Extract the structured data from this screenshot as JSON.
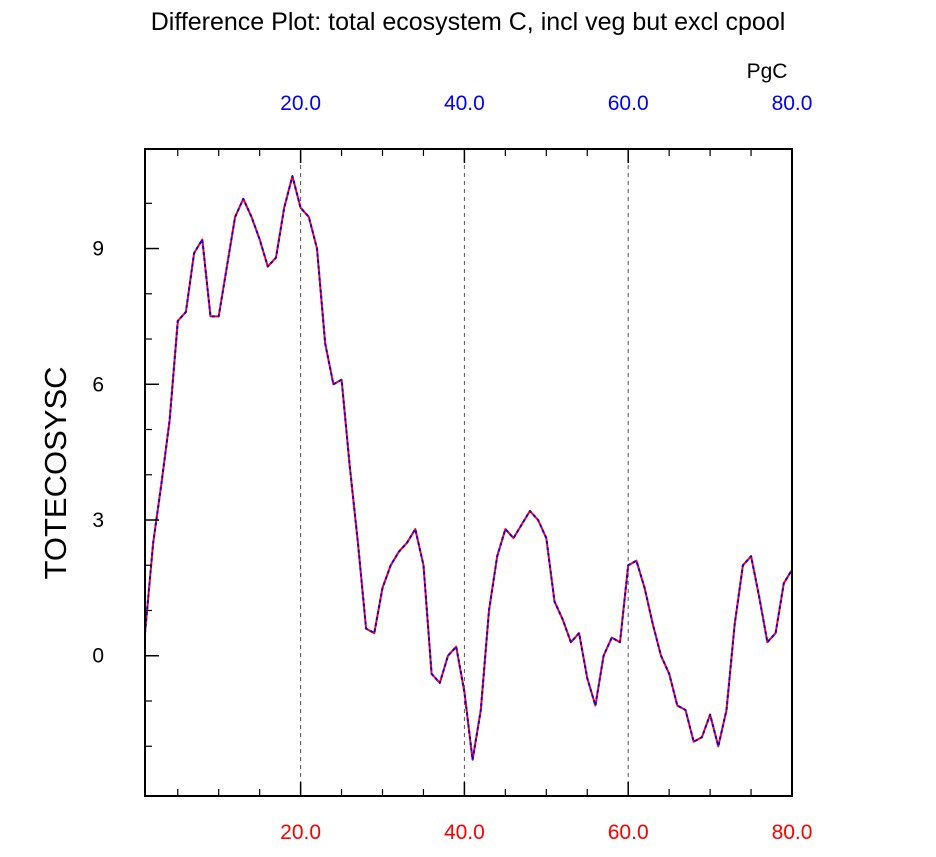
{
  "chart_data": {
    "type": "line",
    "title": "Difference Plot: total ecosystem C, incl veg but excl cpool",
    "units": "PgC",
    "ylabel": "TOTECOSYSC",
    "xlim": [
      1,
      80
    ],
    "ylim": [
      -3.1,
      11.2
    ],
    "x_major_ticks": [
      20,
      40,
      60,
      80
    ],
    "x_tick_labels": [
      "20.0",
      "40.0",
      "60.0",
      "80.0"
    ],
    "x_minor_ticks": [
      5,
      10,
      15,
      25,
      30,
      35,
      45,
      50,
      55,
      65,
      70,
      75
    ],
    "y_major_ticks": [
      0,
      3,
      6,
      9
    ],
    "y_tick_labels": [
      "0",
      "3",
      "6",
      "9"
    ],
    "y_minor_ticks": [
      -2,
      -1,
      1,
      2,
      4,
      5,
      7,
      8,
      10
    ],
    "grid": "vertical dashed at major x ticks",
    "bottom_axis_color": "#ff0000",
    "top_axis_color": "#0000ff",
    "line_color_1": "#ff0000",
    "line_color_2": "#0000ff",
    "x": [
      1,
      2,
      3,
      4,
      5,
      6,
      7,
      8,
      9,
      10,
      11,
      12,
      13,
      14,
      15,
      16,
      17,
      18,
      19,
      20,
      21,
      22,
      23,
      24,
      25,
      26,
      27,
      28,
      29,
      30,
      31,
      32,
      33,
      34,
      35,
      36,
      37,
      38,
      39,
      40,
      41,
      42,
      43,
      44,
      45,
      46,
      47,
      48,
      49,
      50,
      51,
      52,
      53,
      54,
      55,
      56,
      57,
      58,
      59,
      60,
      61,
      62,
      63,
      64,
      65,
      66,
      67,
      68,
      69,
      70,
      71,
      72,
      73,
      74,
      75,
      76,
      77,
      78,
      79,
      80
    ],
    "series": [
      {
        "values": [
          0.5,
          2.5,
          3.8,
          5.2,
          7.4,
          7.6,
          8.9,
          9.2,
          7.5,
          7.5,
          8.6,
          9.7,
          10.1,
          9.7,
          9.2,
          8.6,
          8.8,
          9.9,
          10.6,
          9.9,
          9.7,
          9.0,
          6.9,
          6.0,
          6.1,
          4.2,
          2.5,
          0.6,
          0.5,
          1.5,
          2.0,
          2.3,
          2.5,
          2.8,
          2.0,
          -0.4,
          -0.6,
          0.0,
          0.2,
          -0.8,
          -2.3,
          -1.2,
          1.0,
          2.2,
          2.8,
          2.6,
          2.9,
          3.2,
          3.0,
          2.6,
          1.2,
          0.8,
          0.3,
          0.5,
          -0.5,
          -1.1,
          0.0,
          0.4,
          0.3,
          2.0,
          2.1,
          1.5,
          0.7,
          0.0,
          -0.4,
          -1.1,
          -1.2,
          -1.9,
          -1.8,
          -1.3,
          -2.0,
          -1.2,
          0.7,
          2.0,
          2.2,
          1.3,
          0.3,
          0.5,
          1.6,
          1.9
        ]
      }
    ]
  }
}
